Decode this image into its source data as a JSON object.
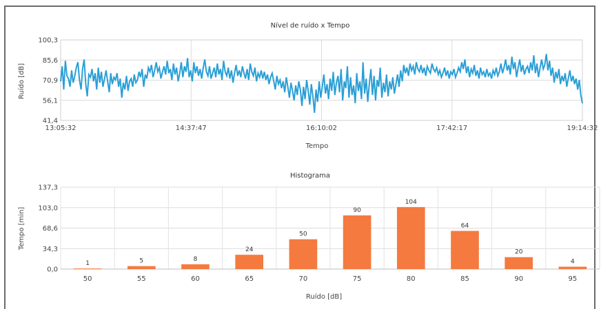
{
  "chart_data": [
    {
      "type": "line",
      "title": "Nível de ruído x Tempo",
      "xlabel": "Tempo",
      "ylabel": "Ruído [dB]",
      "x_ticks": [
        "13:05:32",
        "14:37:47",
        "16:10:02",
        "17:42:17",
        "19:14:32"
      ],
      "y_ticks": [
        "41,4",
        "56,1",
        "70,9",
        "85,6",
        "100,3"
      ],
      "ylim": [
        41.4,
        100.3
      ],
      "grid": true,
      "color": "#2a9fd6",
      "series": [
        {
          "values": [
            70,
            81,
            64,
            85,
            74,
            72,
            66,
            78,
            69,
            74,
            80,
            84,
            71,
            64,
            79,
            86,
            68,
            59,
            75,
            73,
            79,
            70,
            76,
            64,
            80,
            69,
            77,
            66,
            72,
            78,
            70,
            62,
            76,
            68,
            73,
            71,
            76,
            66,
            72,
            58,
            69,
            64,
            74,
            63,
            70,
            72,
            66,
            75,
            69,
            71,
            77,
            73,
            79,
            66,
            75,
            72,
            80,
            77,
            82,
            73,
            78,
            84,
            77,
            80,
            72,
            77,
            81,
            75,
            85,
            76,
            79,
            71,
            83,
            75,
            80,
            70,
            76,
            84,
            73,
            81,
            77,
            87,
            73,
            78,
            70,
            84,
            76,
            81,
            74,
            79,
            72,
            80,
            86,
            77,
            74,
            81,
            72,
            76,
            80,
            73,
            83,
            75,
            79,
            71,
            85,
            77,
            74,
            80,
            72,
            78,
            69,
            76,
            82,
            74,
            78,
            73,
            81,
            76,
            72,
            79,
            71,
            83,
            77,
            74,
            80,
            70,
            76,
            73,
            78,
            72,
            77,
            71,
            75,
            68,
            73,
            76,
            70,
            64,
            74,
            68,
            71,
            65,
            70,
            62,
            73,
            66,
            58,
            69,
            63,
            56,
            67,
            60,
            70,
            64,
            52,
            66,
            57,
            71,
            63,
            53,
            68,
            59,
            47,
            64,
            55,
            70,
            58,
            66,
            75,
            61,
            68,
            57,
            72,
            63,
            77,
            60,
            69,
            74,
            62,
            79,
            56,
            70,
            65,
            81,
            58,
            73,
            60,
            67,
            54,
            76,
            63,
            70,
            57,
            84,
            61,
            72,
            55,
            68,
            79,
            60,
            74,
            56,
            71,
            66,
            80,
            58,
            69,
            62,
            75,
            59,
            70,
            64,
            73,
            61,
            68,
            75,
            66,
            78,
            70,
            82,
            76,
            80,
            74,
            83,
            78,
            81,
            75,
            84,
            79,
            77,
            82,
            76,
            80,
            74,
            81,
            78,
            76,
            83,
            79,
            77,
            80,
            75,
            78,
            73,
            76,
            80,
            74,
            78,
            72,
            77,
            75,
            79,
            73,
            76,
            80,
            77,
            84,
            79,
            86,
            76,
            81,
            73,
            79,
            76,
            82,
            74,
            78,
            72,
            80,
            75,
            77,
            73,
            79,
            74,
            76,
            72,
            78,
            75,
            80,
            74,
            77,
            83,
            76,
            80,
            86,
            78,
            82,
            75,
            88,
            79,
            84,
            73,
            80,
            86,
            77,
            82,
            75,
            79,
            81,
            76,
            84,
            78,
            89,
            76,
            83,
            73,
            80,
            86,
            79,
            82,
            90,
            78,
            85,
            74,
            80,
            69,
            77,
            72,
            79,
            68,
            74,
            70,
            76,
            66,
            72,
            78,
            70,
            74,
            68,
            72,
            64,
            71,
            60,
            54
          ]
        }
      ]
    },
    {
      "type": "bar",
      "title": "Histograma",
      "xlabel": "Ruído [dB]",
      "ylabel": "Tempo [min]",
      "categories": [
        "50",
        "55",
        "60",
        "65",
        "70",
        "75",
        "80",
        "85",
        "90",
        "95"
      ],
      "values": [
        1,
        5,
        8,
        24,
        50,
        90,
        104,
        64,
        20,
        4
      ],
      "data_labels": [
        "1",
        "5",
        "8",
        "24",
        "50",
        "90",
        "104",
        "64",
        "20",
        "4"
      ],
      "y_ticks": [
        "0,0",
        "34,3",
        "68,6",
        "103,0",
        "137,3"
      ],
      "ylim": [
        0,
        137.3
      ],
      "grid": true,
      "color": "#f47a3f"
    }
  ]
}
